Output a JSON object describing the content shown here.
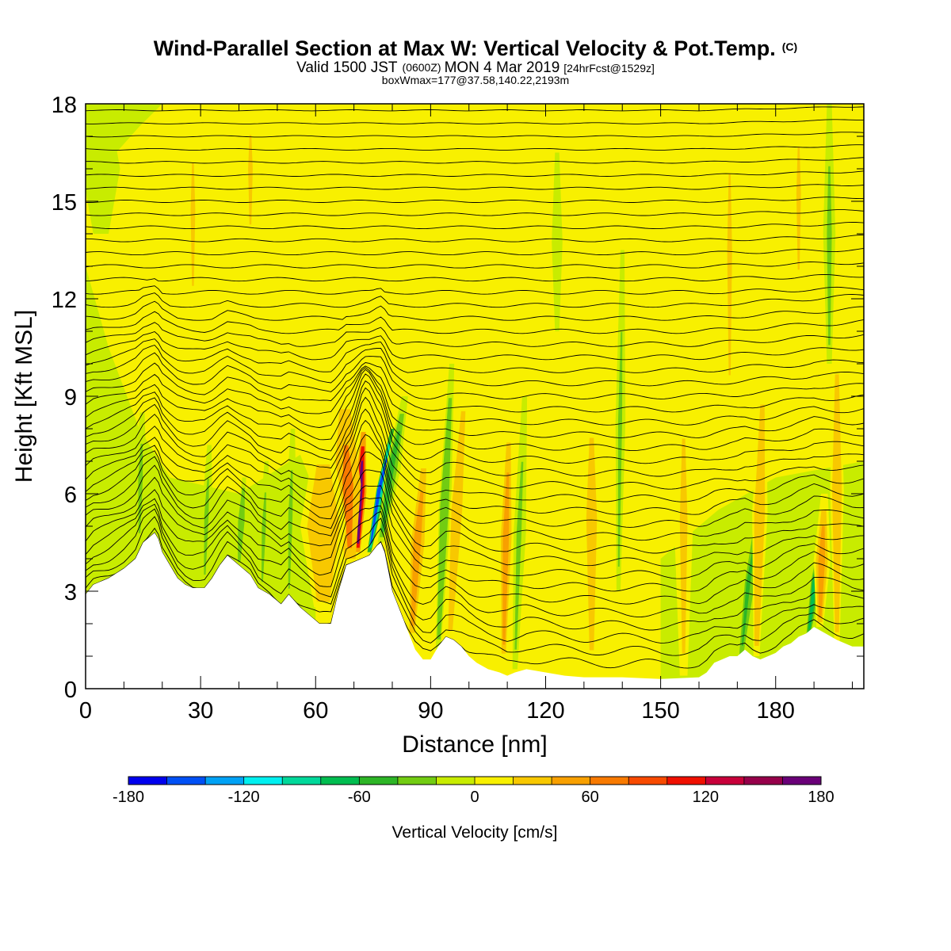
{
  "header": {
    "title_main": "Wind-Parallel Section at Max W: Vertical Velocity & Pot.Temp.",
    "title_mark": "(C)",
    "valid_prefix": "Valid 1500 JST",
    "valid_z": "(0600Z)",
    "valid_date": "MON 4 Mar 2019",
    "valid_fcst": "[24hrFcst@1529z]",
    "box_info": "boxWmax=177@37.58,140.22,2193m"
  },
  "chart_data": {
    "type": "heatmap",
    "title": "Wind-Parallel Section at Max W: Vertical Velocity & Pot.Temp.",
    "xlabel": "Distance [nm]",
    "ylabel": "Height [Kft MSL]",
    "xlim": [
      0,
      203
    ],
    "ylim": [
      0,
      18
    ],
    "x_ticks": [
      "0",
      "30",
      "60",
      "90",
      "120",
      "150",
      "180"
    ],
    "x_tick_values": [
      0,
      30,
      60,
      90,
      120,
      150,
      180
    ],
    "y_ticks": [
      "0",
      "3",
      "6",
      "9",
      "12",
      "15",
      "18"
    ],
    "y_tick_values": [
      0,
      3,
      6,
      9,
      12,
      15,
      18
    ],
    "colorbar": {
      "label": "Vertical Velocity [cm/s]",
      "range": [
        -180,
        180
      ],
      "tick_labels": [
        "-180",
        "-120",
        "-60",
        "0",
        "60",
        "120",
        "180"
      ],
      "tick_values": [
        -180,
        -120,
        -60,
        0,
        60,
        120,
        180
      ],
      "colors": [
        "#0000ee",
        "#0050f5",
        "#00a2f5",
        "#00f0f0",
        "#00d89a",
        "#00bd50",
        "#2db526",
        "#72cc12",
        "#c8ec00",
        "#f8f000",
        "#f8c800",
        "#f8a000",
        "#f87a00",
        "#f84a00",
        "#f01000",
        "#c8003a",
        "#96004a",
        "#6a0078"
      ]
    },
    "terrain": [
      [
        0,
        2.9
      ],
      [
        2,
        3.2
      ],
      [
        6,
        3.4
      ],
      [
        10,
        3.7
      ],
      [
        13,
        4.0
      ],
      [
        15,
        4.5
      ],
      [
        18,
        4.8
      ],
      [
        19,
        4.6
      ],
      [
        20,
        4.2
      ],
      [
        22,
        3.8
      ],
      [
        24,
        3.4
      ],
      [
        26,
        3.2
      ],
      [
        28,
        3.1
      ],
      [
        31,
        3.1
      ],
      [
        33,
        3.4
      ],
      [
        35,
        3.8
      ],
      [
        37,
        4.1
      ],
      [
        39,
        3.9
      ],
      [
        41,
        3.7
      ],
      [
        43,
        3.5
      ],
      [
        45,
        3.1
      ],
      [
        48,
        2.9
      ],
      [
        51,
        2.6
      ],
      [
        53,
        2.9
      ],
      [
        56,
        2.5
      ],
      [
        59,
        2.2
      ],
      [
        61,
        2.0
      ],
      [
        64,
        2.0
      ],
      [
        66,
        3.0
      ],
      [
        68,
        3.8
      ],
      [
        70,
        3.9
      ],
      [
        72,
        4.0
      ],
      [
        74,
        4.1
      ],
      [
        76,
        4.4
      ],
      [
        77,
        4.5
      ],
      [
        78,
        4.2
      ],
      [
        79,
        3.6
      ],
      [
        80,
        3.0
      ],
      [
        82,
        2.4
      ],
      [
        84,
        1.8
      ],
      [
        86,
        1.2
      ],
      [
        88,
        0.9
      ],
      [
        90,
        0.9
      ],
      [
        92,
        1.3
      ],
      [
        94,
        1.6
      ],
      [
        96,
        1.5
      ],
      [
        98,
        1.3
      ],
      [
        100,
        1.0
      ],
      [
        102,
        0.8
      ],
      [
        105,
        0.6
      ],
      [
        108,
        0.5
      ],
      [
        110,
        0.4
      ],
      [
        112,
        0.5
      ],
      [
        115,
        0.6
      ],
      [
        120,
        0.5
      ],
      [
        125,
        0.4
      ],
      [
        130,
        0.35
      ],
      [
        140,
        0.35
      ],
      [
        150,
        0.3
      ],
      [
        160,
        0.35
      ],
      [
        162,
        0.5
      ],
      [
        164,
        0.8
      ],
      [
        166,
        0.9
      ],
      [
        168,
        1.0
      ],
      [
        170,
        1.0
      ],
      [
        172,
        1.2
      ],
      [
        174,
        1.0
      ],
      [
        176,
        0.9
      ],
      [
        178,
        1.0
      ],
      [
        180,
        1.1
      ],
      [
        182,
        1.3
      ],
      [
        184,
        1.4
      ],
      [
        186,
        1.6
      ],
      [
        188,
        1.7
      ],
      [
        190,
        1.9
      ],
      [
        193,
        1.7
      ],
      [
        196,
        1.5
      ],
      [
        198,
        1.4
      ],
      [
        200,
        1.3
      ],
      [
        203,
        1.3
      ]
    ],
    "velocity_features": [
      {
        "x": 71.0,
        "z0": 4.2,
        "z1": 7.9,
        "w": 170,
        "width": 1.5,
        "slant": 0.4
      },
      {
        "x": 74.0,
        "z0": 4.2,
        "z1": 8.0,
        "w": -150,
        "width": 1.2,
        "slant": 1.6
      },
      {
        "x": 69.0,
        "z0": 4.0,
        "z1": 8.6,
        "w": 60,
        "width": 3.5,
        "slant": -0.3
      },
      {
        "x": 62.0,
        "z0": 2.5,
        "z1": 7.5,
        "w": 35,
        "width": 6.0,
        "slant": 0.0
      },
      {
        "x": 77.0,
        "z0": 4.5,
        "z1": 9.0,
        "w": -45,
        "width": 2.0,
        "slant": 1.4
      },
      {
        "x": 85.0,
        "z0": 1.5,
        "z1": 7.5,
        "w": 40,
        "width": 2.5,
        "slant": 0.6
      },
      {
        "x": 92.0,
        "z0": 1.2,
        "z1": 10.0,
        "w": -40,
        "width": 1.6,
        "slant": 0.4
      },
      {
        "x": 95.0,
        "z0": 1.5,
        "z1": 9.5,
        "w": 35,
        "width": 2.0,
        "slant": 0.5
      },
      {
        "x": 109.0,
        "z0": 0.8,
        "z1": 8.5,
        "w": 45,
        "width": 2.0,
        "slant": 0.2
      },
      {
        "x": 112.0,
        "z0": 0.6,
        "z1": 9.0,
        "w": -30,
        "width": 1.6,
        "slant": 0.3
      },
      {
        "x": 171.0,
        "z0": 1.0,
        "z1": 5.5,
        "w": -60,
        "width": 1.3,
        "slant": 1.0
      },
      {
        "x": 175.0,
        "z0": 1.0,
        "z1": 9.8,
        "w": 35,
        "width": 2.0,
        "slant": 0.2
      },
      {
        "x": 188.5,
        "z0": 1.6,
        "z1": 5.0,
        "w": -80,
        "width": 1.3,
        "slant": 1.2
      },
      {
        "x": 191.5,
        "z0": 1.9,
        "z1": 6.0,
        "w": 40,
        "width": 2.2,
        "slant": 0.3
      },
      {
        "x": 196.0,
        "z0": 1.4,
        "z1": 10.8,
        "w": 35,
        "width": 1.8,
        "slant": 0.0
      },
      {
        "x": 14.0,
        "z0": 4.5,
        "z1": 8.5,
        "w": -25,
        "width": 1.5,
        "slant": 0.2
      },
      {
        "x": 31.0,
        "z0": 3.2,
        "z1": 7.5,
        "w": -25,
        "width": 1.4,
        "slant": 0.3
      },
      {
        "x": 40.0,
        "z0": 3.8,
        "z1": 6.5,
        "w": -35,
        "width": 1.2,
        "slant": 0.5
      },
      {
        "x": 46.0,
        "z0": 3.0,
        "z1": 7.0,
        "w": -30,
        "width": 1.3,
        "slant": 0.3
      },
      {
        "x": 53.0,
        "z0": 2.7,
        "z1": 8.0,
        "w": -25,
        "width": 1.4,
        "slant": 0.2
      },
      {
        "x": 132.0,
        "z0": 0.5,
        "z1": 10.0,
        "w": 30,
        "width": 3.5,
        "slant": 0.0
      },
      {
        "x": 139.0,
        "z0": 3.0,
        "z1": 13.5,
        "w": -25,
        "width": 1.3,
        "slant": 0.1
      },
      {
        "x": 156.0,
        "z0": 0.4,
        "z1": 10.0,
        "w": 25,
        "width": 2.5,
        "slant": 0.0
      },
      {
        "x": 28.0,
        "z0": 12.0,
        "z1": 17.5,
        "w": 30,
        "width": 1.5,
        "slant": 0.0
      },
      {
        "x": 43.0,
        "z0": 14.0,
        "z1": 18.0,
        "w": 25,
        "width": 1.5,
        "slant": 0.0
      },
      {
        "x": 168.0,
        "z0": 9.0,
        "z1": 18.0,
        "w": 30,
        "width": 1.6,
        "slant": 0.0
      },
      {
        "x": 186.0,
        "z0": 12.5,
        "z1": 18.0,
        "w": 28,
        "width": 1.5,
        "slant": 0.0
      },
      {
        "x": 194.0,
        "z0": 10.0,
        "z1": 18.0,
        "w": -25,
        "width": 1.6,
        "slant": 0.0
      },
      {
        "x": 4.0,
        "z0": 14.0,
        "z1": 18.0,
        "w": -20,
        "width": 5.0,
        "slant": 0.0
      },
      {
        "x": 123.0,
        "z0": 11.0,
        "z1": 16.5,
        "w": -20,
        "width": 1.4,
        "slant": 0.0
      }
    ],
    "theta_contours": {
      "count": 44,
      "bottom": 0.6,
      "spacing": 0.4
    }
  }
}
